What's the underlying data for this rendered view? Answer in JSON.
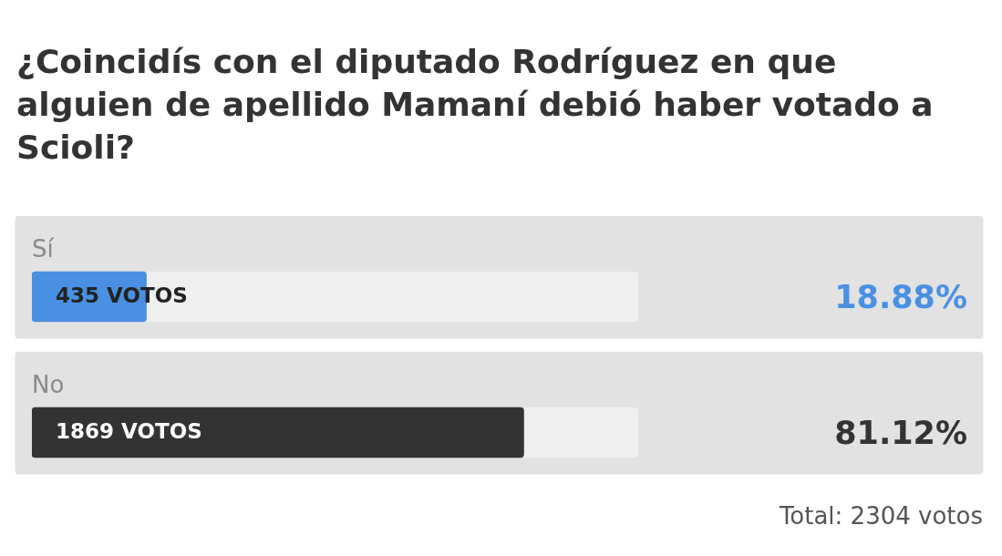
{
  "chart_data": {
    "type": "bar",
    "orientation": "horizontal",
    "title": "¿Coincidís con el diputado Rodríguez en que alguien de apellido Mamaní debió haber votado a Scioli?",
    "categories": [
      "Sí",
      "No"
    ],
    "values": [
      18.88,
      81.12
    ],
    "colors": [
      "#4a90e2",
      "#333333"
    ],
    "value_labels": [
      "18.88%",
      "81.12%"
    ],
    "xlim": [
      0,
      100
    ],
    "tick_labels": "y",
    "annotations": [
      "435 VOTOS",
      "1869 VOTOS",
      "Total: 2304 votos"
    ]
  }
}
